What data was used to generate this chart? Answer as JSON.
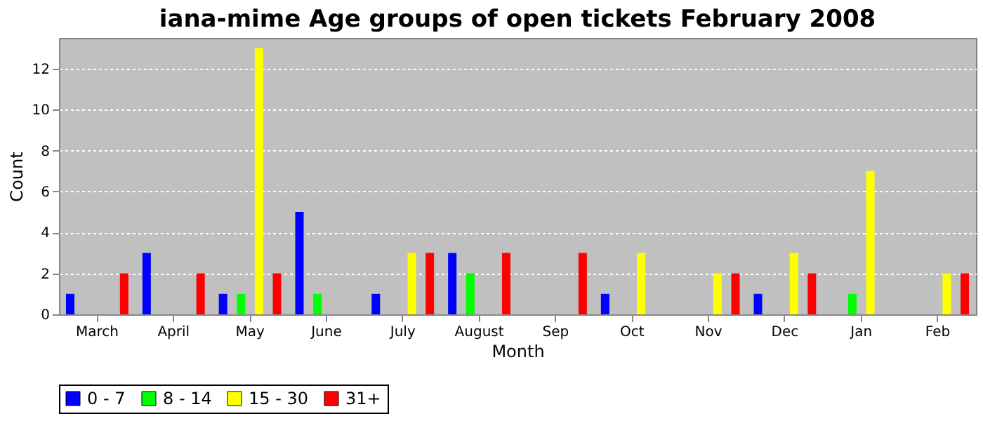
{
  "chart_data": {
    "type": "bar",
    "title": "iana-mime Age groups of open tickets February 2008",
    "xlabel": "Month",
    "ylabel": "Count",
    "categories": [
      "March",
      "April",
      "May",
      "June",
      "July",
      "August",
      "Sep",
      "Oct",
      "Nov",
      "Dec",
      "Jan",
      "Feb"
    ],
    "series": [
      {
        "name": "0 - 7",
        "color": "#0000ff",
        "values": [
          1,
          3,
          1,
          5,
          1,
          3,
          0,
          1,
          0,
          1,
          0,
          0
        ]
      },
      {
        "name": "8 - 14",
        "color": "#00ff00",
        "values": [
          0,
          0,
          1,
          1,
          0,
          2,
          0,
          0,
          0,
          0,
          1,
          0
        ]
      },
      {
        "name": "15 - 30",
        "color": "#ffff00",
        "values": [
          0,
          0,
          13,
          0,
          3,
          0,
          0,
          3,
          2,
          3,
          7,
          2
        ]
      },
      {
        "name": "31+",
        "color": "#ff0000",
        "values": [
          2,
          2,
          2,
          0,
          3,
          3,
          3,
          0,
          2,
          2,
          0,
          2
        ]
      }
    ],
    "ylim": [
      0,
      13.5
    ],
    "yticks": [
      0,
      2,
      4,
      6,
      8,
      10,
      12
    ],
    "grid": "y",
    "legend": "bottom"
  }
}
